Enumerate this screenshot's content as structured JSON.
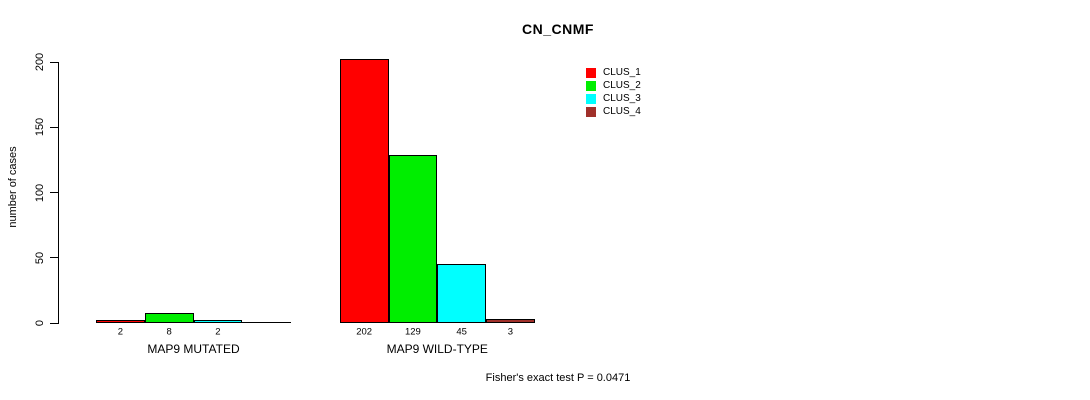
{
  "chart_data": {
    "type": "bar",
    "title": "CN_CNMF",
    "ylabel": "number of cases",
    "note": "Fisher's exact test P = 0.0471",
    "categories": [
      "MAP9 MUTATED",
      "MAP9 WILD-TYPE"
    ],
    "series": [
      {
        "name": "CLUS_1",
        "color": "#ff0000",
        "values": [
          2,
          202
        ]
      },
      {
        "name": "CLUS_2",
        "color": "#00ee00",
        "values": [
          8,
          129
        ]
      },
      {
        "name": "CLUS_3",
        "color": "#00ffff",
        "values": [
          2,
          45
        ]
      },
      {
        "name": "CLUS_4",
        "color": "#a0302a",
        "values": [
          0,
          3
        ]
      }
    ],
    "yticks": [
      0,
      50,
      100,
      150,
      200
    ],
    "ylim": [
      0,
      200
    ],
    "grid": false,
    "legend_position": "top-right",
    "bar_value_labels_shown": true,
    "zero_value_labels_hidden": true
  }
}
